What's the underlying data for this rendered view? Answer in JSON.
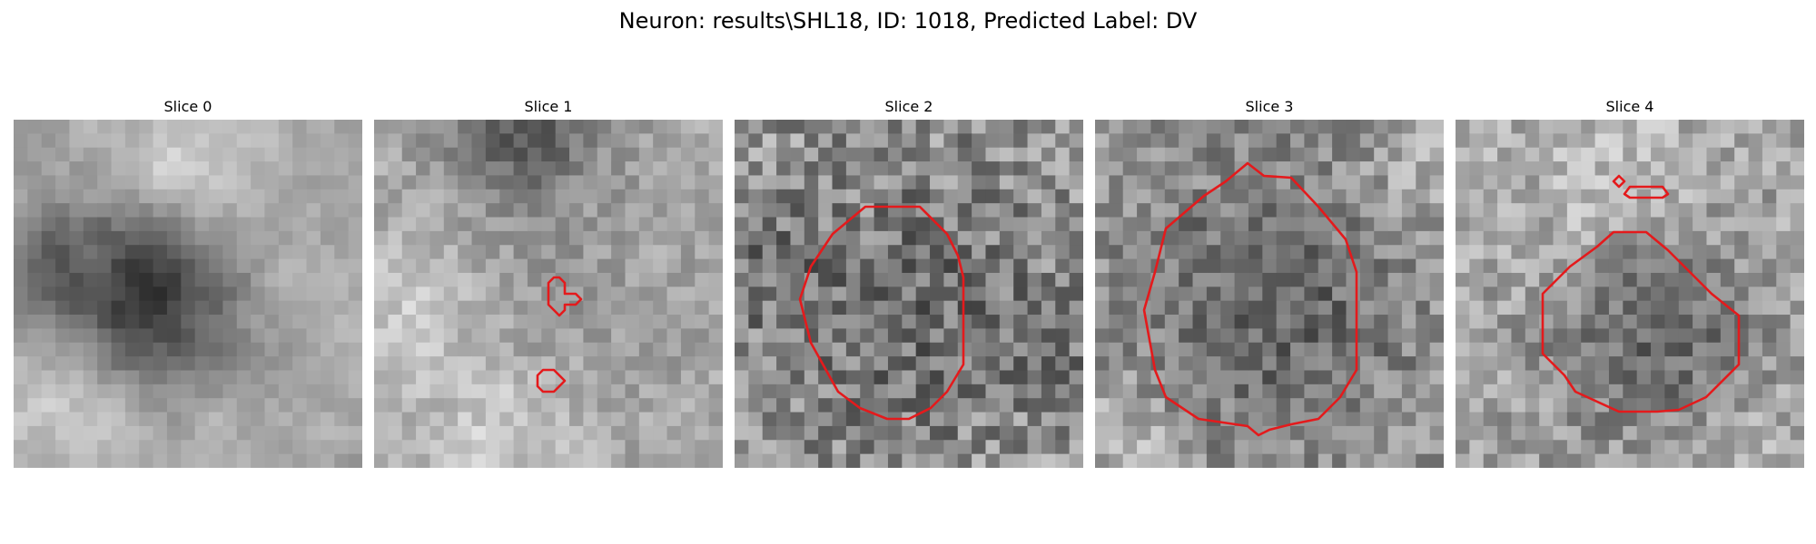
{
  "figure": {
    "title": "Neuron: results\\SHL18, ID: 1018, Predicted Label: DV"
  },
  "slices": [
    {
      "title": "Slice 0"
    },
    {
      "title": "Slice 1"
    },
    {
      "title": "Slice 2"
    },
    {
      "title": "Slice 3"
    },
    {
      "title": "Slice 4"
    }
  ],
  "colors": {
    "contour": "#e41a1c",
    "background": "#ffffff"
  },
  "colormap": "gray"
}
